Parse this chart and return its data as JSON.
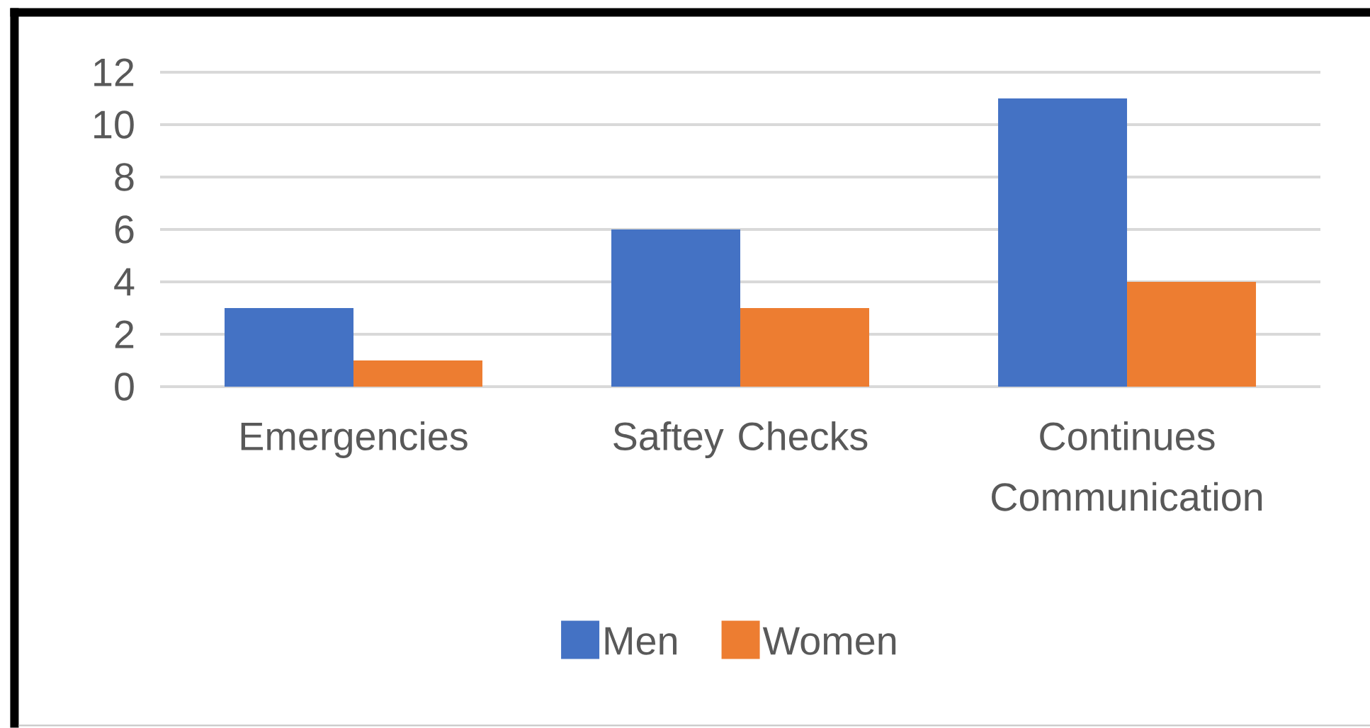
{
  "chart_data": {
    "type": "bar",
    "categories": [
      "Emergencies",
      "Saftey Checks",
      "Continues Communication"
    ],
    "series": [
      {
        "name": "Men",
        "color": "#4472c4",
        "values": [
          3,
          6,
          11
        ]
      },
      {
        "name": "Women",
        "color": "#ed7d31",
        "values": [
          1,
          3,
          4
        ]
      }
    ],
    "ylim": [
      0,
      12
    ],
    "yticks": [
      0,
      2,
      4,
      6,
      8,
      10,
      12
    ],
    "grid": "y",
    "legend": "bottom"
  }
}
